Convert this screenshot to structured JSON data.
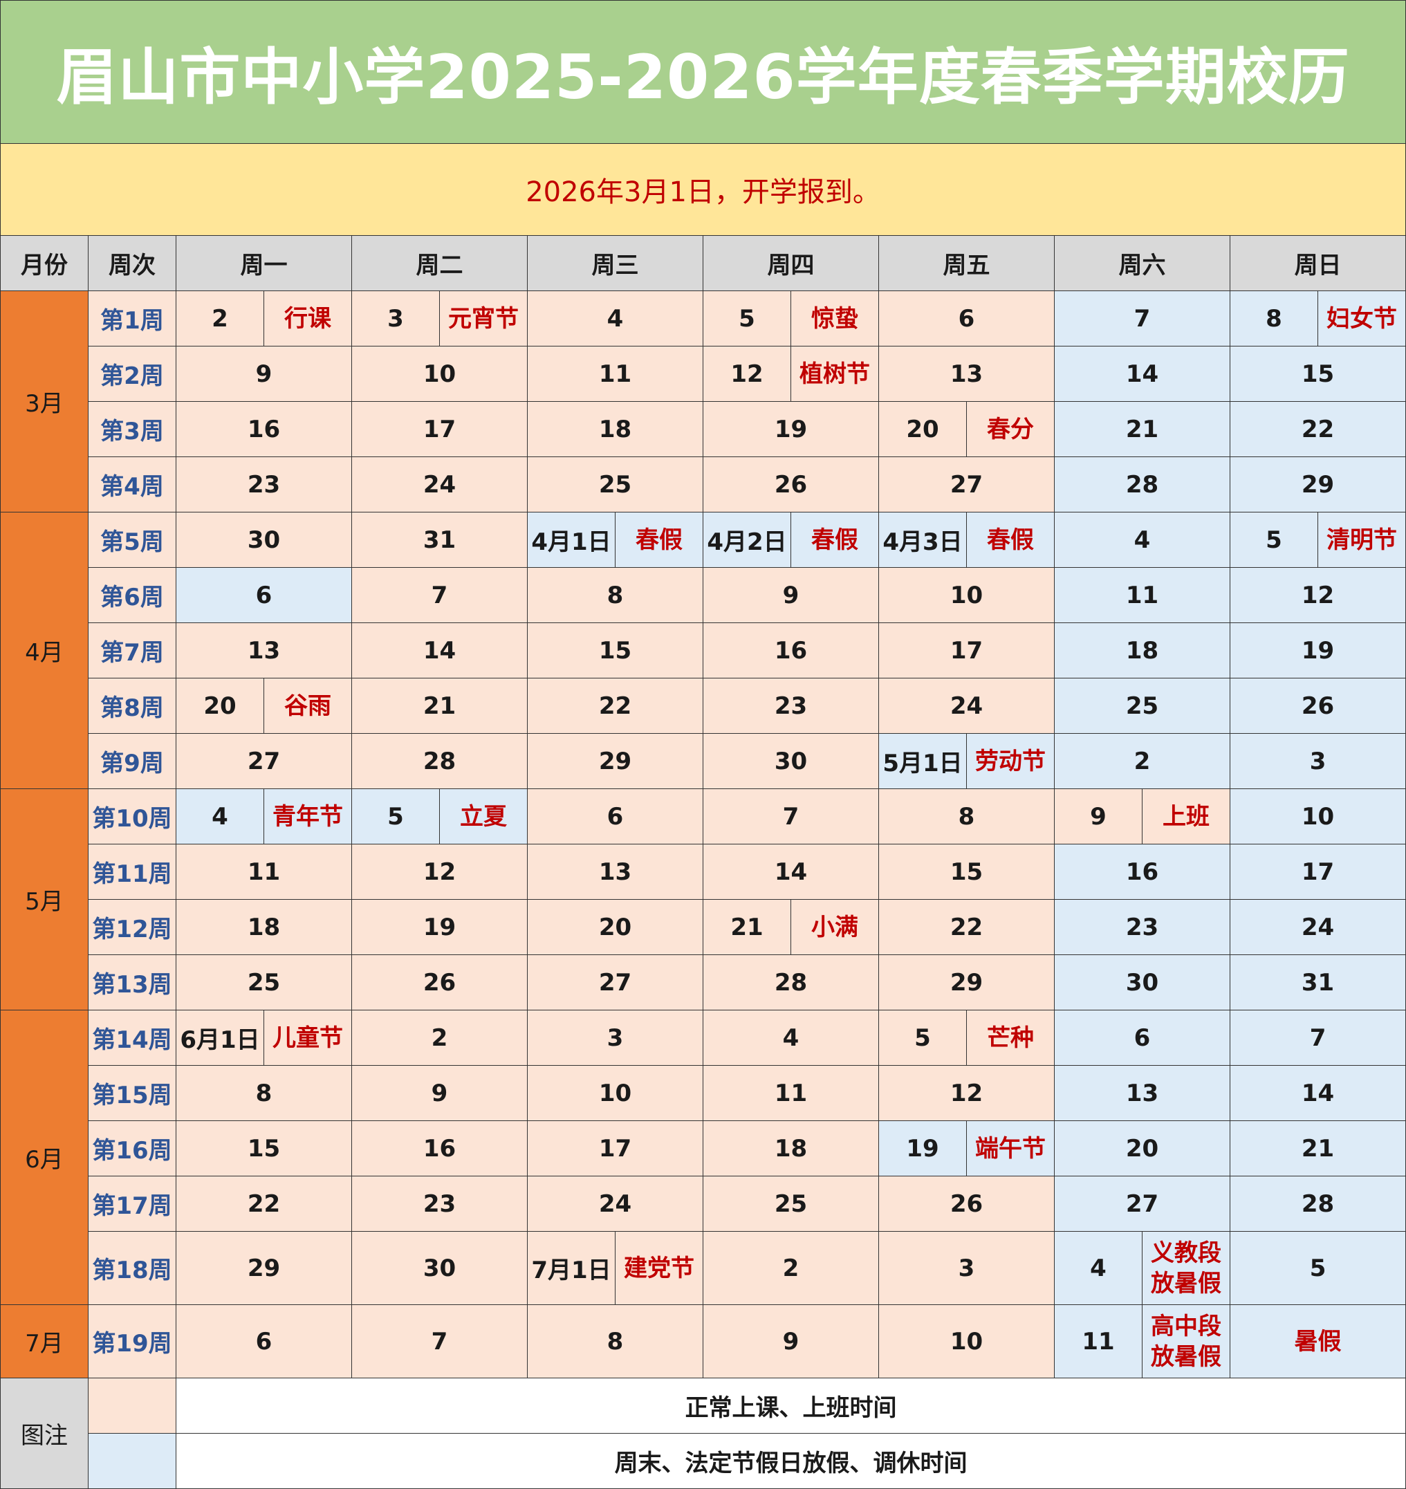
{
  "title": "眉山市中小学2025-2026学年度春季学期校历",
  "notice": "2026年3月1日，开学报到。",
  "headers": {
    "month": "月份",
    "week": "周次",
    "days": [
      "周一",
      "周二",
      "周三",
      "周四",
      "周五",
      "周六",
      "周日"
    ]
  },
  "colors": {
    "title_bg": "#a9d08e",
    "notice_bg": "#ffe699",
    "notice_text": "#c00000",
    "header_bg": "#d9d9d9",
    "month_bg": "#ed7d31",
    "week_text": "#2f5597",
    "workday_bg": "#fce4d6",
    "holiday_bg": "#ddebf7",
    "event_text": "#c00000"
  },
  "months": [
    {
      "label": "3月",
      "weeks": [
        {
          "label": "第1周",
          "days": [
            {
              "d": "2",
              "ev": "行课",
              "type": "w"
            },
            {
              "d": "3",
              "ev": "元宵节",
              "type": "w"
            },
            {
              "d": "4",
              "type": "w"
            },
            {
              "d": "5",
              "ev": "惊蛰",
              "type": "w"
            },
            {
              "d": "6",
              "type": "w"
            },
            {
              "d": "7",
              "type": "h"
            },
            {
              "d": "8",
              "ev": "妇女节",
              "type": "h"
            }
          ]
        },
        {
          "label": "第2周",
          "days": [
            {
              "d": "9",
              "type": "w"
            },
            {
              "d": "10",
              "type": "w"
            },
            {
              "d": "11",
              "type": "w"
            },
            {
              "d": "12",
              "ev": "植树节",
              "type": "w"
            },
            {
              "d": "13",
              "type": "w"
            },
            {
              "d": "14",
              "type": "h"
            },
            {
              "d": "15",
              "type": "h"
            }
          ]
        },
        {
          "label": "第3周",
          "days": [
            {
              "d": "16",
              "type": "w"
            },
            {
              "d": "17",
              "type": "w"
            },
            {
              "d": "18",
              "type": "w"
            },
            {
              "d": "19",
              "type": "w"
            },
            {
              "d": "20",
              "ev": "春分",
              "type": "w"
            },
            {
              "d": "21",
              "type": "h"
            },
            {
              "d": "22",
              "type": "h"
            }
          ]
        },
        {
          "label": "第4周",
          "days": [
            {
              "d": "23",
              "type": "w"
            },
            {
              "d": "24",
              "type": "w"
            },
            {
              "d": "25",
              "type": "w"
            },
            {
              "d": "26",
              "type": "w"
            },
            {
              "d": "27",
              "type": "w"
            },
            {
              "d": "28",
              "type": "h"
            },
            {
              "d": "29",
              "type": "h"
            }
          ]
        }
      ]
    },
    {
      "label": "4月",
      "weeks": [
        {
          "label": "第5周",
          "days": [
            {
              "d": "30",
              "type": "w"
            },
            {
              "d": "31",
              "type": "w"
            },
            {
              "d": "4月1日",
              "ev": "春假",
              "type": "h"
            },
            {
              "d": "4月2日",
              "ev": "春假",
              "type": "h"
            },
            {
              "d": "4月3日",
              "ev": "春假",
              "type": "h"
            },
            {
              "d": "4",
              "type": "h"
            },
            {
              "d": "5",
              "ev": "清明节",
              "type": "h"
            }
          ]
        },
        {
          "label": "第6周",
          "days": [
            {
              "d": "6",
              "type": "h"
            },
            {
              "d": "7",
              "type": "w"
            },
            {
              "d": "8",
              "type": "w"
            },
            {
              "d": "9",
              "type": "w"
            },
            {
              "d": "10",
              "type": "w"
            },
            {
              "d": "11",
              "type": "h"
            },
            {
              "d": "12",
              "type": "h"
            }
          ]
        },
        {
          "label": "第7周",
          "days": [
            {
              "d": "13",
              "type": "w"
            },
            {
              "d": "14",
              "type": "w"
            },
            {
              "d": "15",
              "type": "w"
            },
            {
              "d": "16",
              "type": "w"
            },
            {
              "d": "17",
              "type": "w"
            },
            {
              "d": "18",
              "type": "h"
            },
            {
              "d": "19",
              "type": "h"
            }
          ]
        },
        {
          "label": "第8周",
          "days": [
            {
              "d": "20",
              "ev": "谷雨",
              "type": "w"
            },
            {
              "d": "21",
              "type": "w"
            },
            {
              "d": "22",
              "type": "w"
            },
            {
              "d": "23",
              "type": "w"
            },
            {
              "d": "24",
              "type": "w"
            },
            {
              "d": "25",
              "type": "h"
            },
            {
              "d": "26",
              "type": "h"
            }
          ]
        },
        {
          "label": "第9周",
          "days": [
            {
              "d": "27",
              "type": "w"
            },
            {
              "d": "28",
              "type": "w"
            },
            {
              "d": "29",
              "type": "w"
            },
            {
              "d": "30",
              "type": "w"
            },
            {
              "d": "5月1日",
              "ev": "劳动节",
              "type": "h"
            },
            {
              "d": "2",
              "type": "h"
            },
            {
              "d": "3",
              "type": "h"
            }
          ]
        }
      ]
    },
    {
      "label": "5月",
      "weeks": [
        {
          "label": "第10周",
          "days": [
            {
              "d": "4",
              "ev": "青年节",
              "type": "h"
            },
            {
              "d": "5",
              "ev": "立夏",
              "type": "h"
            },
            {
              "d": "6",
              "type": "w"
            },
            {
              "d": "7",
              "type": "w"
            },
            {
              "d": "8",
              "type": "w"
            },
            {
              "d": "9",
              "ev": "上班",
              "type": "w"
            },
            {
              "d": "10",
              "type": "h"
            }
          ]
        },
        {
          "label": "第11周",
          "days": [
            {
              "d": "11",
              "type": "w"
            },
            {
              "d": "12",
              "type": "w"
            },
            {
              "d": "13",
              "type": "w"
            },
            {
              "d": "14",
              "type": "w"
            },
            {
              "d": "15",
              "type": "w"
            },
            {
              "d": "16",
              "type": "h"
            },
            {
              "d": "17",
              "type": "h"
            }
          ]
        },
        {
          "label": "第12周",
          "days": [
            {
              "d": "18",
              "type": "w"
            },
            {
              "d": "19",
              "type": "w"
            },
            {
              "d": "20",
              "type": "w"
            },
            {
              "d": "21",
              "ev": "小满",
              "type": "w"
            },
            {
              "d": "22",
              "type": "w"
            },
            {
              "d": "23",
              "type": "h"
            },
            {
              "d": "24",
              "type": "h"
            }
          ]
        },
        {
          "label": "第13周",
          "days": [
            {
              "d": "25",
              "type": "w"
            },
            {
              "d": "26",
              "type": "w"
            },
            {
              "d": "27",
              "type": "w"
            },
            {
              "d": "28",
              "type": "w"
            },
            {
              "d": "29",
              "type": "w"
            },
            {
              "d": "30",
              "type": "h"
            },
            {
              "d": "31",
              "type": "h"
            }
          ]
        }
      ]
    },
    {
      "label": "6月",
      "weeks": [
        {
          "label": "第14周",
          "days": [
            {
              "d": "6月1日",
              "ev": "儿童节",
              "type": "w"
            },
            {
              "d": "2",
              "type": "w"
            },
            {
              "d": "3",
              "type": "w"
            },
            {
              "d": "4",
              "type": "w"
            },
            {
              "d": "5",
              "ev": "芒种",
              "type": "w"
            },
            {
              "d": "6",
              "type": "h"
            },
            {
              "d": "7",
              "type": "h"
            }
          ]
        },
        {
          "label": "第15周",
          "days": [
            {
              "d": "8",
              "type": "w"
            },
            {
              "d": "9",
              "type": "w"
            },
            {
              "d": "10",
              "type": "w"
            },
            {
              "d": "11",
              "type": "w"
            },
            {
              "d": "12",
              "type": "w"
            },
            {
              "d": "13",
              "type": "h"
            },
            {
              "d": "14",
              "type": "h"
            }
          ]
        },
        {
          "label": "第16周",
          "days": [
            {
              "d": "15",
              "type": "w"
            },
            {
              "d": "16",
              "type": "w"
            },
            {
              "d": "17",
              "type": "w"
            },
            {
              "d": "18",
              "type": "w"
            },
            {
              "d": "19",
              "ev": "端午节",
              "type": "h"
            },
            {
              "d": "20",
              "type": "h"
            },
            {
              "d": "21",
              "type": "h"
            }
          ]
        },
        {
          "label": "第17周",
          "days": [
            {
              "d": "22",
              "type": "w"
            },
            {
              "d": "23",
              "type": "w"
            },
            {
              "d": "24",
              "type": "w"
            },
            {
              "d": "25",
              "type": "w"
            },
            {
              "d": "26",
              "type": "w"
            },
            {
              "d": "27",
              "type": "h"
            },
            {
              "d": "28",
              "type": "h"
            }
          ]
        },
        {
          "label": "第18周",
          "tall": true,
          "days": [
            {
              "d": "29",
              "type": "w"
            },
            {
              "d": "30",
              "type": "w"
            },
            {
              "d": "7月1日",
              "ev": "建党节",
              "type": "w"
            },
            {
              "d": "2",
              "type": "w"
            },
            {
              "d": "3",
              "type": "w"
            },
            {
              "d": "4",
              "ev": "义教段\n放暑假",
              "type": "h"
            },
            {
              "d": "5",
              "type": "h"
            }
          ]
        }
      ]
    },
    {
      "label": "7月",
      "weeks": [
        {
          "label": "第19周",
          "tall": true,
          "days": [
            {
              "d": "6",
              "type": "w"
            },
            {
              "d": "7",
              "type": "w"
            },
            {
              "d": "8",
              "type": "w"
            },
            {
              "d": "9",
              "type": "w"
            },
            {
              "d": "10",
              "type": "w"
            },
            {
              "d": "11",
              "ev": "高中段\n放暑假",
              "type": "h"
            },
            {
              "ev": "暑假",
              "type": "h"
            }
          ]
        }
      ]
    }
  ],
  "legend": {
    "label": "图注",
    "items": [
      {
        "color": "workday",
        "text": "正常上课、上班时间"
      },
      {
        "color": "holiday",
        "text": "周末、法定节假日放假、调休时间"
      }
    ]
  }
}
